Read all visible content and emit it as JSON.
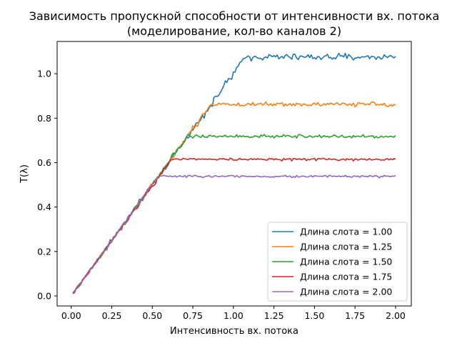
{
  "chart_data": {
    "type": "line",
    "title": "Зависимость пропускной способности от интенсивности вх. потока",
    "subtitle": "(моделирование, кол-во каналов 2)",
    "xlabel": "Интенсивность вх. потока",
    "ylabel": "T(λ)",
    "xlim": [
      -0.087,
      2.097
    ],
    "ylim": [
      -0.045,
      1.145
    ],
    "x_ticks": [
      "0.00",
      "0.25",
      "0.50",
      "0.75",
      "1.00",
      "1.25",
      "1.50",
      "1.75",
      "2.00"
    ],
    "y_ticks": [
      "0.0",
      "0.2",
      "0.4",
      "0.6",
      "0.8",
      "1.0"
    ],
    "x_range": [
      0.01,
      2.0
    ],
    "x_points": 200,
    "legend_position": "bottom-right",
    "grid": false,
    "series": [
      {
        "name": "Длина слота = 1.00",
        "color": "#1f77b4",
        "saturation_x": 1.08,
        "plateau": 1.075,
        "noise": 0.014
      },
      {
        "name": "Длина слота = 1.25",
        "color": "#ff7f0e",
        "saturation_x": 0.86,
        "plateau": 0.862,
        "noise": 0.009
      },
      {
        "name": "Длина слота = 1.50",
        "color": "#2ca02c",
        "saturation_x": 0.72,
        "plateau": 0.718,
        "noise": 0.007
      },
      {
        "name": "Длина слота = 1.75",
        "color": "#d62728",
        "saturation_x": 0.62,
        "plateau": 0.615,
        "noise": 0.006
      },
      {
        "name": "Длина слота = 2.00",
        "color": "#9467bd",
        "saturation_x": 0.545,
        "plateau": 0.538,
        "noise": 0.005
      }
    ]
  }
}
